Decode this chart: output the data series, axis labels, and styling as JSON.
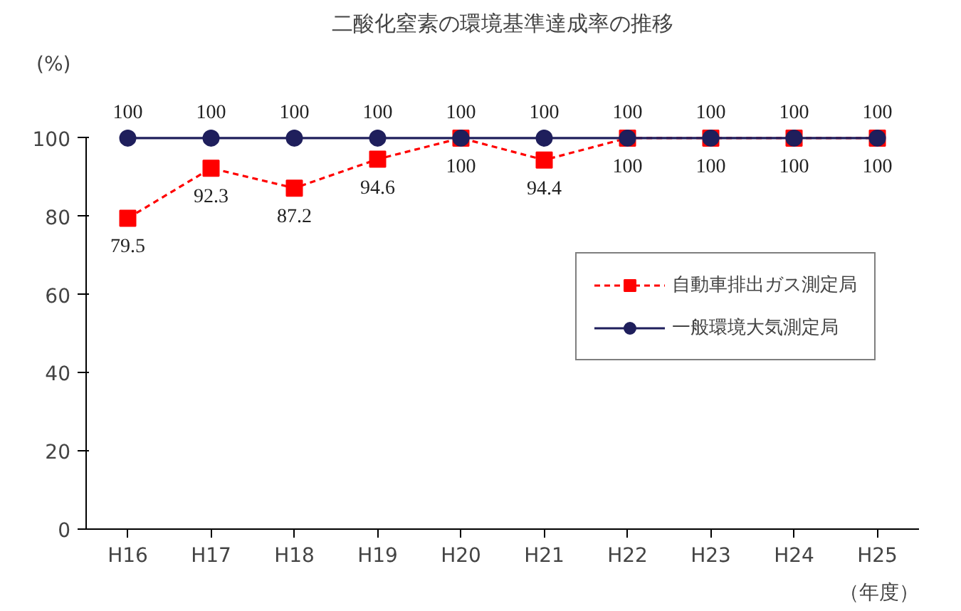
{
  "chart_data": {
    "type": "line",
    "title": "二酸化窒素の環境基準達成率の推移",
    "ylabel": "(%)",
    "xlabel": "（年度）",
    "categories": [
      "H16",
      "H17",
      "H18",
      "H19",
      "H20",
      "H21",
      "H22",
      "H23",
      "H24",
      "H25"
    ],
    "series": [
      {
        "name": "自動車排出ガス測定局",
        "color": "#ff0000",
        "values": [
          79.5,
          92.3,
          87.2,
          94.6,
          100,
          94.4,
          100,
          100,
          100,
          100
        ],
        "marker": "square",
        "line_style": "dashed"
      },
      {
        "name": "一般環境大気測定局",
        "color": "#1f1f5c",
        "values": [
          100,
          100,
          100,
          100,
          100,
          100,
          100,
          100,
          100,
          100
        ],
        "marker": "circle",
        "line_style": "solid"
      }
    ],
    "ylim": [
      0,
      100
    ],
    "yticks": [
      0,
      20,
      40,
      60,
      80,
      100
    ],
    "grid": false,
    "legend": "right",
    "data_labels": true
  }
}
